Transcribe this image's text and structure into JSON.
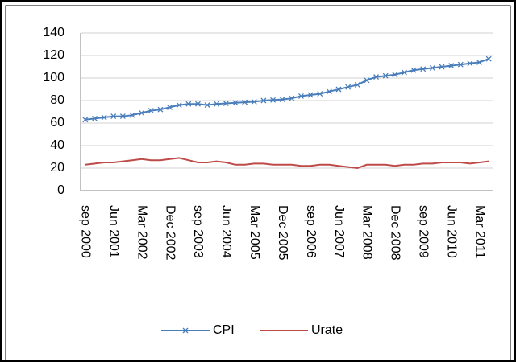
{
  "chart_data": {
    "type": "line",
    "categories": [
      "sep 2000",
      null,
      null,
      "Jun 2001",
      null,
      null,
      "Mar 2002",
      null,
      null,
      "Dec 2002",
      null,
      null,
      "sep 2003",
      null,
      null,
      "Jun 2004",
      null,
      null,
      "Mar 2005",
      null,
      null,
      "Dec 2005",
      null,
      null,
      "sep 2006",
      null,
      null,
      "Jun 2007",
      null,
      null,
      "Mar 2008",
      null,
      null,
      "Dec 2008",
      null,
      null,
      "sep 2009",
      null,
      null,
      "Jun 2010",
      null,
      null,
      "Mar 2011",
      null
    ],
    "series": [
      {
        "name": "CPI",
        "color": "#4a7ebb",
        "marker": "x",
        "values": [
          63,
          64,
          65,
          66,
          66,
          67,
          69,
          71,
          72,
          74,
          76,
          77,
          77,
          76,
          77,
          77.5,
          78,
          78.5,
          79,
          80,
          80.5,
          81,
          82,
          84,
          85,
          86,
          88,
          90,
          92,
          94,
          98,
          101,
          102,
          103,
          105,
          107,
          108,
          109,
          110,
          111,
          112,
          113,
          114,
          117
        ]
      },
      {
        "name": "Urate",
        "color": "#be4b48",
        "values": [
          23,
          24,
          25,
          25,
          26,
          27,
          28,
          27,
          27,
          28,
          29,
          27,
          25,
          25,
          26,
          25,
          23,
          23,
          24,
          24,
          23,
          23,
          23,
          22,
          22,
          23,
          23,
          22,
          21,
          20,
          23,
          23,
          23,
          22,
          23,
          23,
          24,
          24,
          25,
          25,
          25,
          24,
          25,
          26
        ]
      }
    ],
    "ylim": [
      0,
      140
    ],
    "yticks": [
      0,
      20,
      40,
      60,
      80,
      100,
      120,
      140
    ],
    "grid": true,
    "legend": "bottom"
  }
}
